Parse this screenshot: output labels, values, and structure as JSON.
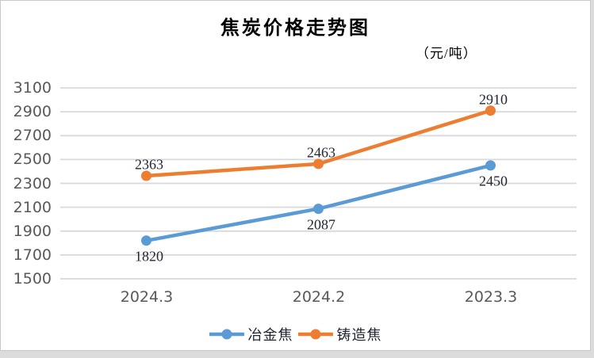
{
  "chart_data": {
    "type": "line",
    "title": "焦炭价格走势图",
    "unit_label": "（元/吨）",
    "categories": [
      "2024.3",
      "2024.2",
      "2023.3"
    ],
    "series": [
      {
        "name": "冶金焦",
        "color": "#5B9BD5",
        "values": [
          1820,
          2087,
          2450
        ],
        "label_position": "below"
      },
      {
        "name": "铸造焦",
        "color": "#ED7D31",
        "values": [
          2363,
          2463,
          2910
        ],
        "label_position": "above"
      }
    ],
    "ylim": [
      1500,
      3100
    ],
    "y_ticks": [
      3100,
      2900,
      2700,
      2500,
      2300,
      2100,
      1900,
      1700,
      1500
    ],
    "grid": true,
    "legend_position": "bottom",
    "colors": {
      "gridline": "#D9D9D9",
      "axis_text": "#595959",
      "data_label_text": "#1F2430",
      "title_text": "#000000",
      "frame_border": "#C9C9C9",
      "canvas_edge": "#DCDCDC",
      "background": "#FFFFFF"
    }
  }
}
